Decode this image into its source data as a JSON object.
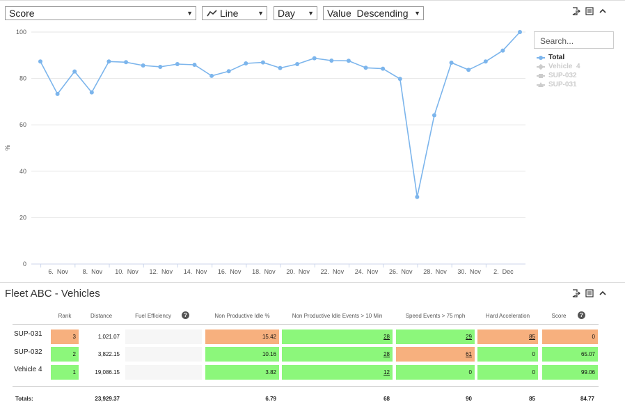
{
  "toolbar": {
    "metric": "Score",
    "chart_type": "Line",
    "period": "Day",
    "sort": "Value  Descending"
  },
  "search": {
    "placeholder": "Search..."
  },
  "legend": [
    {
      "label": "Total",
      "active": true
    },
    {
      "label": "Vehicle  4",
      "active": false
    },
    {
      "label": "SUP-032",
      "active": false
    },
    {
      "label": "SUP-031",
      "active": false
    }
  ],
  "colors": {
    "line": "#7cb5ec",
    "good": "#8cf77b",
    "bad": "#f7b07e"
  },
  "chart_data": {
    "type": "line",
    "ylabel": "%",
    "ylim": [
      0,
      100
    ],
    "yticks": [
      0,
      20,
      40,
      60,
      80,
      100
    ],
    "x_tick_labels": [
      "6.  Nov",
      "8.  Nov",
      "10.  Nov",
      "12.  Nov",
      "14.  Nov",
      "16.  Nov",
      "18.  Nov",
      "20.  Nov",
      "22.  Nov",
      "24.  Nov",
      "26.  Nov",
      "28.  Nov",
      "30.  Nov",
      "2.  Dec"
    ],
    "x_tick_days": [
      6,
      8,
      10,
      12,
      14,
      16,
      18,
      20,
      22,
      24,
      26,
      28,
      30,
      32
    ],
    "series": [
      {
        "name": "Total",
        "x": [
          5,
          6,
          7,
          8,
          9,
          10,
          11,
          12,
          13,
          14,
          15,
          16,
          17,
          18,
          19,
          20,
          21,
          22,
          23,
          24,
          25,
          26,
          27,
          28,
          29,
          30,
          31,
          32,
          33
        ],
        "values": [
          87.3,
          73.3,
          83,
          74,
          87.3,
          87,
          85.6,
          85,
          86.2,
          85.9,
          81.1,
          83.1,
          86.5,
          86.9,
          84.5,
          86.2,
          88.7,
          87.7,
          87.6,
          84.6,
          84.2,
          79.8,
          28.9,
          64.1,
          86.8,
          83.7,
          87.3,
          92,
          100
        ]
      }
    ]
  },
  "fleet": {
    "title": "Fleet ABC - Vehicles",
    "headers": [
      "Rank",
      "Distance",
      "Fuel Efficiency",
      "Non Productive Idle %",
      "Non Productive Idle Events > 10 Min",
      "Speed Events > 75 mph",
      "Hard Acceleration",
      "Score"
    ],
    "rows": [
      {
        "name": "SUP-031",
        "rank": "3",
        "distance": "1,021.07",
        "npi": "15.42",
        "npe": "28",
        "speed": "29",
        "hard": "85",
        "score": "0"
      },
      {
        "name": "SUP-032",
        "rank": "2",
        "distance": "3,822.15",
        "npi": "10.16",
        "npe": "28",
        "speed": "61",
        "hard": "0",
        "score": "65.07"
      },
      {
        "name": "Vehicle 4",
        "rank": "1",
        "distance": "19,086.15",
        "npi": "3.82",
        "npe": "12",
        "speed": "0",
        "hard": "0",
        "score": "99.06"
      }
    ],
    "totals": {
      "label": "Totals:",
      "distance": "23,929.37",
      "npi": "6.79",
      "npe": "68",
      "speed": "90",
      "hard": "85",
      "score": "84.77"
    },
    "help_icon": "?"
  }
}
